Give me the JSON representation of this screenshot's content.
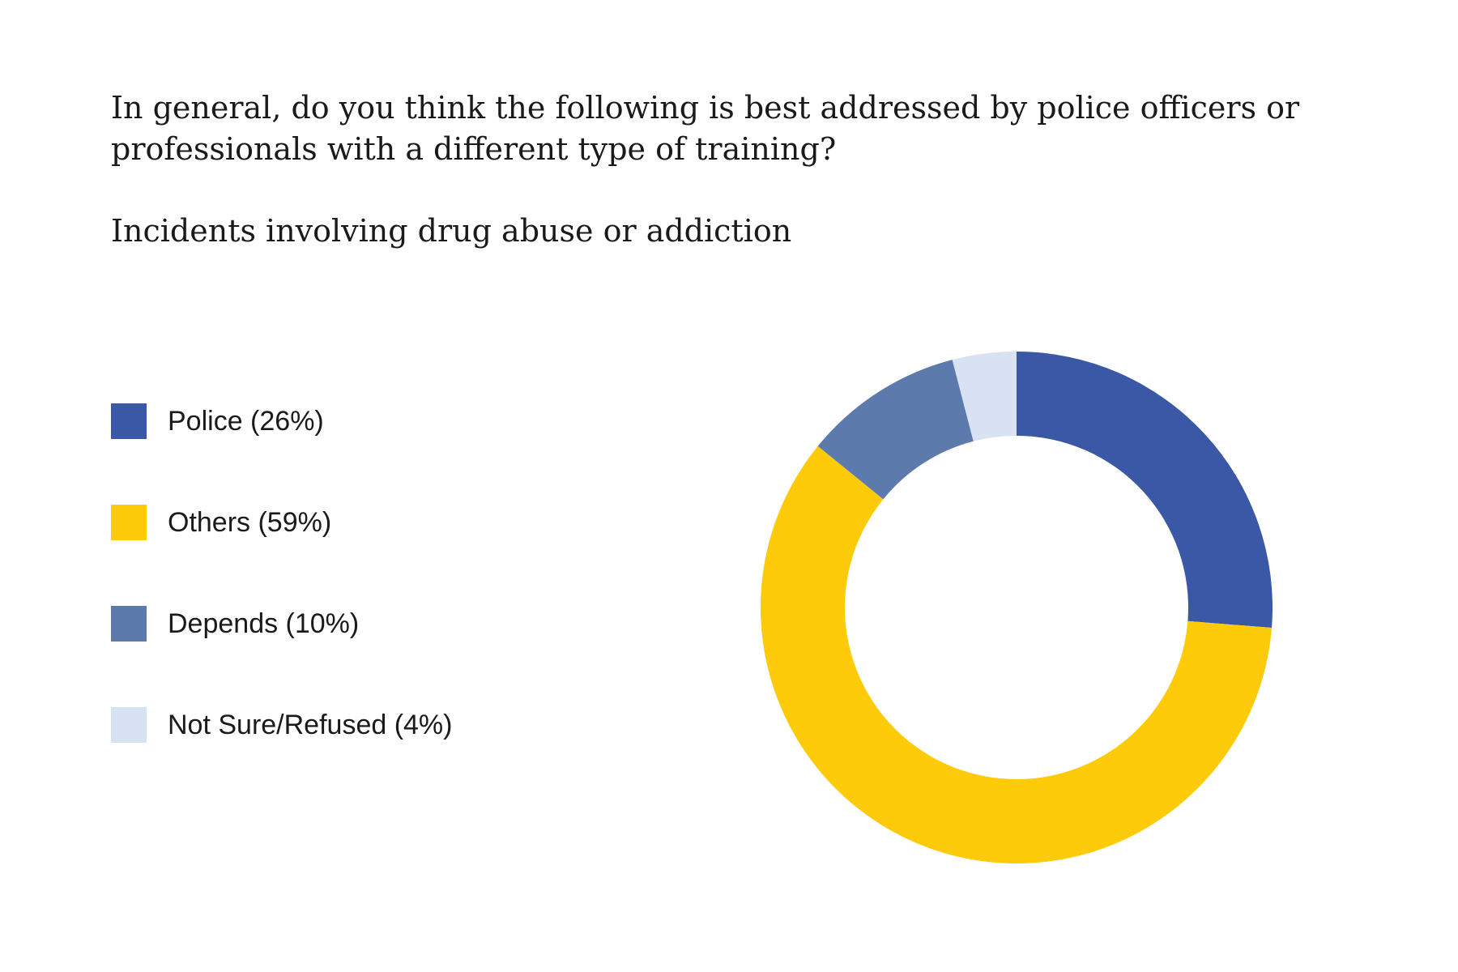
{
  "title": "In general, do you think the following is best addressed by police officers or professionals with a different type of training?",
  "subtitle": "Incidents involving drug abuse or addiction",
  "legend": [
    {
      "label": "Police (26%)",
      "color": "#3b58a6"
    },
    {
      "label": "Others (59%)",
      "color": "#fdcb09"
    },
    {
      "label": "Depends (10%)",
      "color": "#5c7aab"
    },
    {
      "label": "Not Sure/Refused (4%)",
      "color": "#d9e2f3"
    }
  ],
  "chart_data": {
    "type": "pie",
    "variant": "donut",
    "title": "In general, do you think the following is best addressed by police officers or professionals with a different type of training?",
    "subtitle": "Incidents involving drug abuse or addiction",
    "categories": [
      "Police",
      "Others",
      "Depends",
      "Not Sure/Refused"
    ],
    "values": [
      26,
      59,
      10,
      4
    ],
    "colors": [
      "#3b58a6",
      "#fdcb09",
      "#5c7aab",
      "#d9e2f3"
    ],
    "legend_position": "left",
    "start": "top",
    "direction": "clockwise"
  }
}
